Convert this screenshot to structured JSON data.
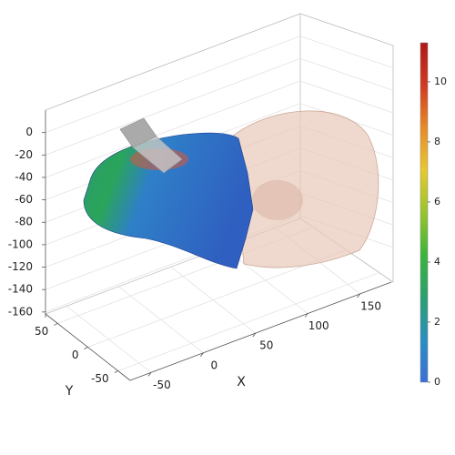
{
  "chart_data": {
    "type": "surface3d",
    "xlabel": "X",
    "ylabel": "Y",
    "xlim": [
      -70,
      180
    ],
    "xticks": [
      -50,
      0,
      50,
      100,
      150
    ],
    "ylim": [
      -70,
      70
    ],
    "yticks": [
      -50,
      0,
      50
    ],
    "zlim": [
      -165,
      20
    ],
    "zticks": [
      0,
      -20,
      -40,
      -60,
      -80,
      -100,
      -120,
      -140,
      -160
    ],
    "grid": true,
    "colorbar": {
      "lim": [
        0,
        11.3
      ],
      "ticks": [
        0,
        2,
        4,
        6,
        8,
        10
      ],
      "colormap": [
        "#3a6fd8",
        "#2a8fc0",
        "#2aa070",
        "#3cb43c",
        "#9ac42c",
        "#e8c830",
        "#e88a28",
        "#d03a20",
        "#b01818"
      ]
    }
  }
}
